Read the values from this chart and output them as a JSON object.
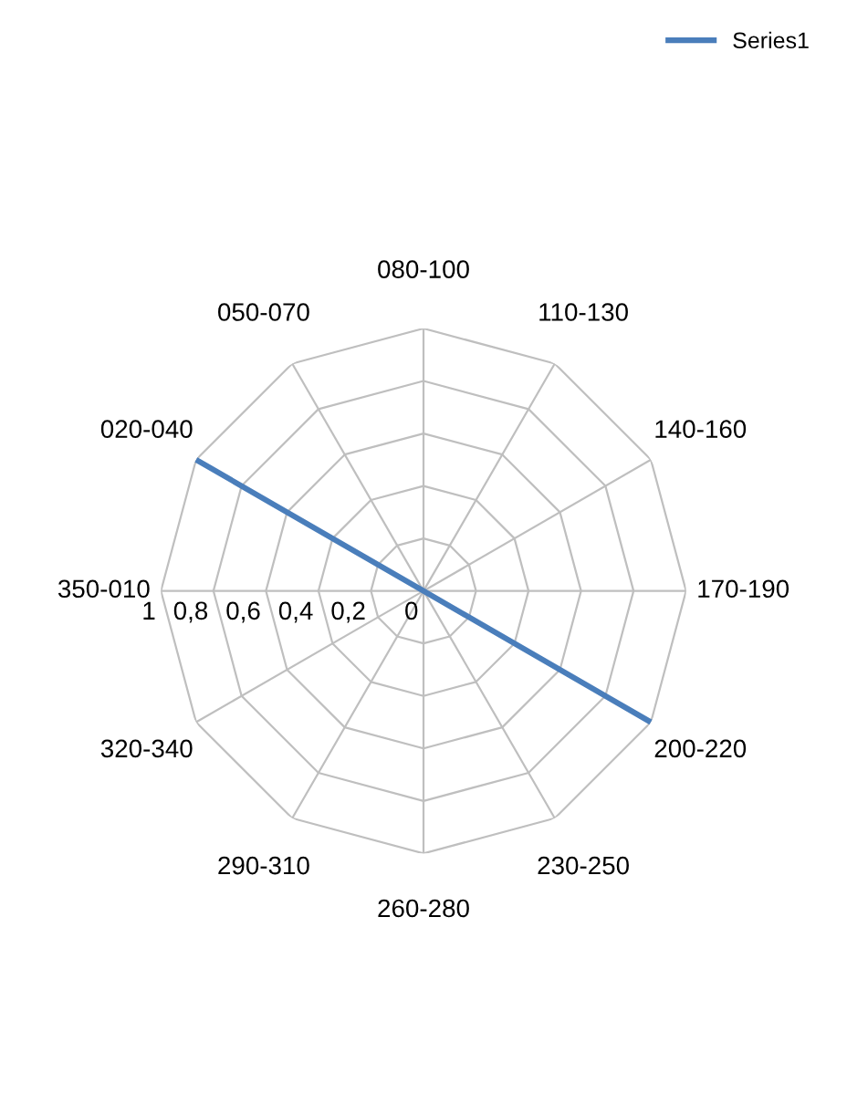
{
  "chart_data": {
    "type": "radar",
    "categories": [
      "350-010",
      "020-040",
      "050-070",
      "080-100",
      "110-130",
      "140-160",
      "170-190",
      "200-220",
      "230-250",
      "260-280",
      "290-310",
      "320-340"
    ],
    "series": [
      {
        "name": "Series1",
        "color": "#4a7ebb",
        "values": [
          0,
          1,
          0,
          0,
          0,
          0,
          0,
          1,
          0,
          0,
          0,
          0
        ]
      }
    ],
    "ylim": [
      0,
      1
    ],
    "yticks": [
      0,
      {
        "value": 0.2,
        "label": "0,2"
      },
      {
        "value": 0.4,
        "label": "0,4"
      },
      {
        "value": 0.6,
        "label": "0,6"
      },
      {
        "value": 0.8,
        "label": "0,8"
      },
      1
    ],
    "grid": true,
    "legend": "top right",
    "marker": "none",
    "line_style": "solid"
  }
}
